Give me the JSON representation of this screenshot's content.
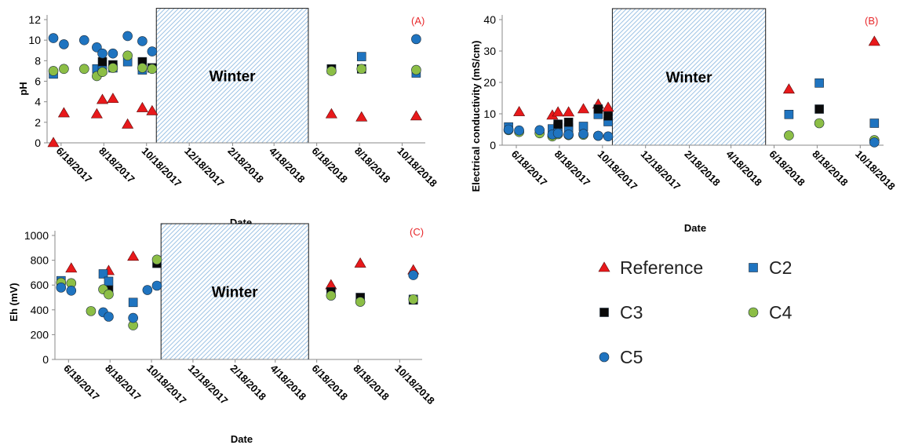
{
  "figure": {
    "series_styles": [
      {
        "name": "Reference",
        "marker": "triangle",
        "color": "#e8191b"
      },
      {
        "name": "C2",
        "marker": "square",
        "color": "#1f74c0"
      },
      {
        "name": "C3",
        "marker": "square",
        "color": "#0a0a0a"
      },
      {
        "name": "C4",
        "marker": "circle",
        "color": "#8cbe46"
      },
      {
        "name": "C5",
        "marker": "circle",
        "color": "#1f74c0"
      }
    ],
    "winter_fill_color": "#9cc2e4",
    "legend_order": [
      "Reference",
      "C2",
      "C3",
      "C4",
      "C5"
    ]
  },
  "chart_data": [
    {
      "panel": "(A)",
      "type": "scatter",
      "ylabel": "pH",
      "xlabel": "Date",
      "ylim": [
        0,
        12
      ],
      "yticks": [
        "0",
        "2",
        "4",
        "6",
        "8",
        "10",
        "12"
      ],
      "xticks": [
        "6/18/2017",
        "8/18/2017",
        "10/18/2017",
        "12/18/2017",
        "2/18/2018",
        "4/18/2018",
        "6/18/2018",
        "8/18/2018",
        "10/18/2018"
      ],
      "xlim": [
        "2017-05-29",
        "2018-11-20"
      ],
      "shaded_region": {
        "label": "Winter",
        "x_start": "2017-11-01",
        "x_end": "2018-06-06",
        "y_top": 13.1
      },
      "series": [
        {
          "name": "Reference",
          "points": [
            [
              "2017-06-07",
              0
            ],
            [
              "2017-06-22",
              2.9
            ],
            [
              "2017-08-08",
              2.8
            ],
            [
              "2017-08-16",
              4.2
            ],
            [
              "2017-08-31",
              4.3
            ],
            [
              "2017-09-21",
              1.8
            ],
            [
              "2017-10-12",
              3.4
            ],
            [
              "2017-10-26",
              3.1
            ],
            [
              "2018-07-09",
              2.8
            ],
            [
              "2018-08-21",
              2.5
            ],
            [
              "2018-11-07",
              2.6
            ]
          ]
        },
        {
          "name": "C2",
          "points": [
            [
              "2017-06-07",
              6.7
            ],
            [
              "2017-08-08",
              7.2
            ],
            [
              "2017-08-16",
              7.1
            ],
            [
              "2017-08-31",
              7.3
            ],
            [
              "2017-09-21",
              7.9
            ],
            [
              "2017-10-12",
              7.1
            ],
            [
              "2017-10-26",
              7.3
            ],
            [
              "2018-07-09",
              7.2
            ],
            [
              "2018-08-21",
              8.4
            ],
            [
              "2018-11-07",
              6.8
            ]
          ]
        },
        {
          "name": "C3",
          "points": [
            [
              "2017-08-16",
              7.9
            ],
            [
              "2017-08-31",
              7.6
            ],
            [
              "2017-10-12",
              7.9
            ],
            [
              "2017-10-26",
              7.3
            ],
            [
              "2018-07-09",
              7.2
            ],
            [
              "2018-08-21",
              7.2
            ]
          ]
        },
        {
          "name": "C4",
          "points": [
            [
              "2017-06-07",
              7.0
            ],
            [
              "2017-06-22",
              7.2
            ],
            [
              "2017-07-21",
              7.2
            ],
            [
              "2017-08-08",
              6.5
            ],
            [
              "2017-08-16",
              6.9
            ],
            [
              "2017-08-31",
              7.3
            ],
            [
              "2017-09-21",
              8.5
            ],
            [
              "2017-10-12",
              7.3
            ],
            [
              "2017-10-26",
              7.2
            ],
            [
              "2018-07-09",
              7.0
            ],
            [
              "2018-08-21",
              7.2
            ],
            [
              "2018-11-07",
              7.1
            ]
          ]
        },
        {
          "name": "C5",
          "points": [
            [
              "2017-06-07",
              10.2
            ],
            [
              "2017-06-22",
              9.6
            ],
            [
              "2017-07-21",
              10.0
            ],
            [
              "2017-08-08",
              9.3
            ],
            [
              "2017-08-16",
              8.7
            ],
            [
              "2017-08-31",
              8.7
            ],
            [
              "2017-09-21",
              10.4
            ],
            [
              "2017-10-12",
              9.9
            ],
            [
              "2017-10-26",
              8.9
            ],
            [
              "2018-11-07",
              10.1
            ]
          ]
        }
      ]
    },
    {
      "panel": "(B)",
      "type": "scatter",
      "ylabel": "Electrical conductivity (mS/cm)",
      "xlabel": "Date",
      "ylim": [
        0,
        40
      ],
      "yticks": [
        "0",
        "10",
        "20",
        "30",
        "40"
      ],
      "xticks": [
        "6/18/2017",
        "8/18/2017",
        "10/18/2017",
        "12/18/2017",
        "2/18/2018",
        "4/18/2018",
        "6/18/2018",
        "8/18/2018",
        "10/18/2018"
      ],
      "xlim": [
        "2017-05-29",
        "2018-11-20"
      ],
      "shaded_region": {
        "label": "Winter",
        "x_start": "2017-11-01",
        "x_end": "2018-06-06",
        "y_top": 43.5
      },
      "series": [
        {
          "name": "Reference",
          "points": [
            [
              "2017-06-22",
              10.6
            ],
            [
              "2017-08-08",
              9.5
            ],
            [
              "2017-08-16",
              10.5
            ],
            [
              "2017-08-31",
              10.5
            ],
            [
              "2017-09-21",
              11.5
            ],
            [
              "2017-10-12",
              13.0
            ],
            [
              "2017-10-26",
              12.0
            ],
            [
              "2018-07-09",
              17.8
            ],
            [
              "2018-11-07",
              33.0
            ]
          ]
        },
        {
          "name": "C2",
          "points": [
            [
              "2017-06-07",
              5.8
            ],
            [
              "2017-08-08",
              5.2
            ],
            [
              "2017-08-16",
              5.8
            ],
            [
              "2017-08-31",
              5.5
            ],
            [
              "2017-09-21",
              6.0
            ],
            [
              "2017-10-12",
              9.8
            ],
            [
              "2017-10-26",
              7.5
            ],
            [
              "2018-07-09",
              9.8
            ],
            [
              "2018-08-21",
              19.8
            ],
            [
              "2018-11-07",
              7.0
            ]
          ]
        },
        {
          "name": "C3",
          "points": [
            [
              "2017-08-16",
              6.7
            ],
            [
              "2017-08-31",
              7.3
            ],
            [
              "2017-10-12",
              11.5
            ],
            [
              "2017-10-26",
              9.3
            ],
            [
              "2018-08-21",
              11.5
            ]
          ]
        },
        {
          "name": "C4",
          "points": [
            [
              "2017-06-07",
              4.8
            ],
            [
              "2017-06-22",
              4.2
            ],
            [
              "2017-07-21",
              3.8
            ],
            [
              "2017-08-08",
              2.8
            ],
            [
              "2017-08-16",
              3.5
            ],
            [
              "2017-08-31",
              3.2
            ],
            [
              "2017-09-21",
              3.3
            ],
            [
              "2017-10-12",
              3.0
            ],
            [
              "2018-07-09",
              3.1
            ],
            [
              "2018-08-21",
              7.0
            ],
            [
              "2018-11-07",
              1.6
            ]
          ]
        },
        {
          "name": "C5",
          "points": [
            [
              "2017-06-07",
              5.0
            ],
            [
              "2017-06-22",
              4.7
            ],
            [
              "2017-07-21",
              4.8
            ],
            [
              "2017-08-08",
              3.4
            ],
            [
              "2017-08-16",
              3.8
            ],
            [
              "2017-08-31",
              3.4
            ],
            [
              "2017-09-21",
              3.6
            ],
            [
              "2017-10-12",
              3.0
            ],
            [
              "2017-10-26",
              2.8
            ],
            [
              "2018-11-07",
              0.9
            ]
          ]
        }
      ]
    },
    {
      "panel": "(C)",
      "type": "scatter",
      "ylabel": "Eh (mV)",
      "xlabel": "Date",
      "ylim": [
        0,
        1000
      ],
      "yticks": [
        "0",
        "200",
        "400",
        "600",
        "800",
        "1000"
      ],
      "xticks": [
        "6/18/2017",
        "8/18/2017",
        "10/18/2017",
        "12/18/2017",
        "2/18/2018",
        "4/18/2018",
        "6/18/2018",
        "8/18/2018",
        "10/18/2018"
      ],
      "xlim": [
        "2017-05-29",
        "2018-11-20"
      ],
      "shaded_region": {
        "label": "Winter",
        "x_start": "2017-11-01",
        "x_end": "2018-06-06",
        "y_top": 1095
      },
      "series": [
        {
          "name": "Reference",
          "points": [
            [
              "2017-06-22",
              735
            ],
            [
              "2017-08-16",
              715
            ],
            [
              "2017-09-21",
              830
            ],
            [
              "2018-07-09",
              600
            ],
            [
              "2018-08-21",
              775
            ],
            [
              "2018-11-07",
              720
            ]
          ]
        },
        {
          "name": "C2",
          "points": [
            [
              "2017-06-07",
              635
            ],
            [
              "2017-08-08",
              690
            ],
            [
              "2017-08-16",
              630
            ],
            [
              "2017-09-21",
              460
            ],
            [
              "2018-11-07",
              485
            ]
          ]
        },
        {
          "name": "C3",
          "points": [
            [
              "2017-08-16",
              560
            ],
            [
              "2017-10-26",
              775
            ],
            [
              "2018-07-09",
              545
            ],
            [
              "2018-08-21",
              500
            ],
            [
              "2018-11-07",
              480
            ]
          ]
        },
        {
          "name": "C4",
          "points": [
            [
              "2017-06-07",
              620
            ],
            [
              "2017-06-22",
              615
            ],
            [
              "2017-07-21",
              390
            ],
            [
              "2017-08-08",
              565
            ],
            [
              "2017-08-16",
              525
            ],
            [
              "2017-09-21",
              275
            ],
            [
              "2017-10-26",
              805
            ],
            [
              "2018-07-09",
              515
            ],
            [
              "2018-08-21",
              465
            ],
            [
              "2018-11-07",
              485
            ]
          ]
        },
        {
          "name": "C5",
          "points": [
            [
              "2017-06-07",
              580
            ],
            [
              "2017-06-22",
              555
            ],
            [
              "2017-08-08",
              380
            ],
            [
              "2017-08-16",
              345
            ],
            [
              "2017-09-21",
              335
            ],
            [
              "2017-10-12",
              560
            ],
            [
              "2017-10-26",
              595
            ],
            [
              "2018-11-07",
              680
            ]
          ]
        }
      ]
    }
  ]
}
